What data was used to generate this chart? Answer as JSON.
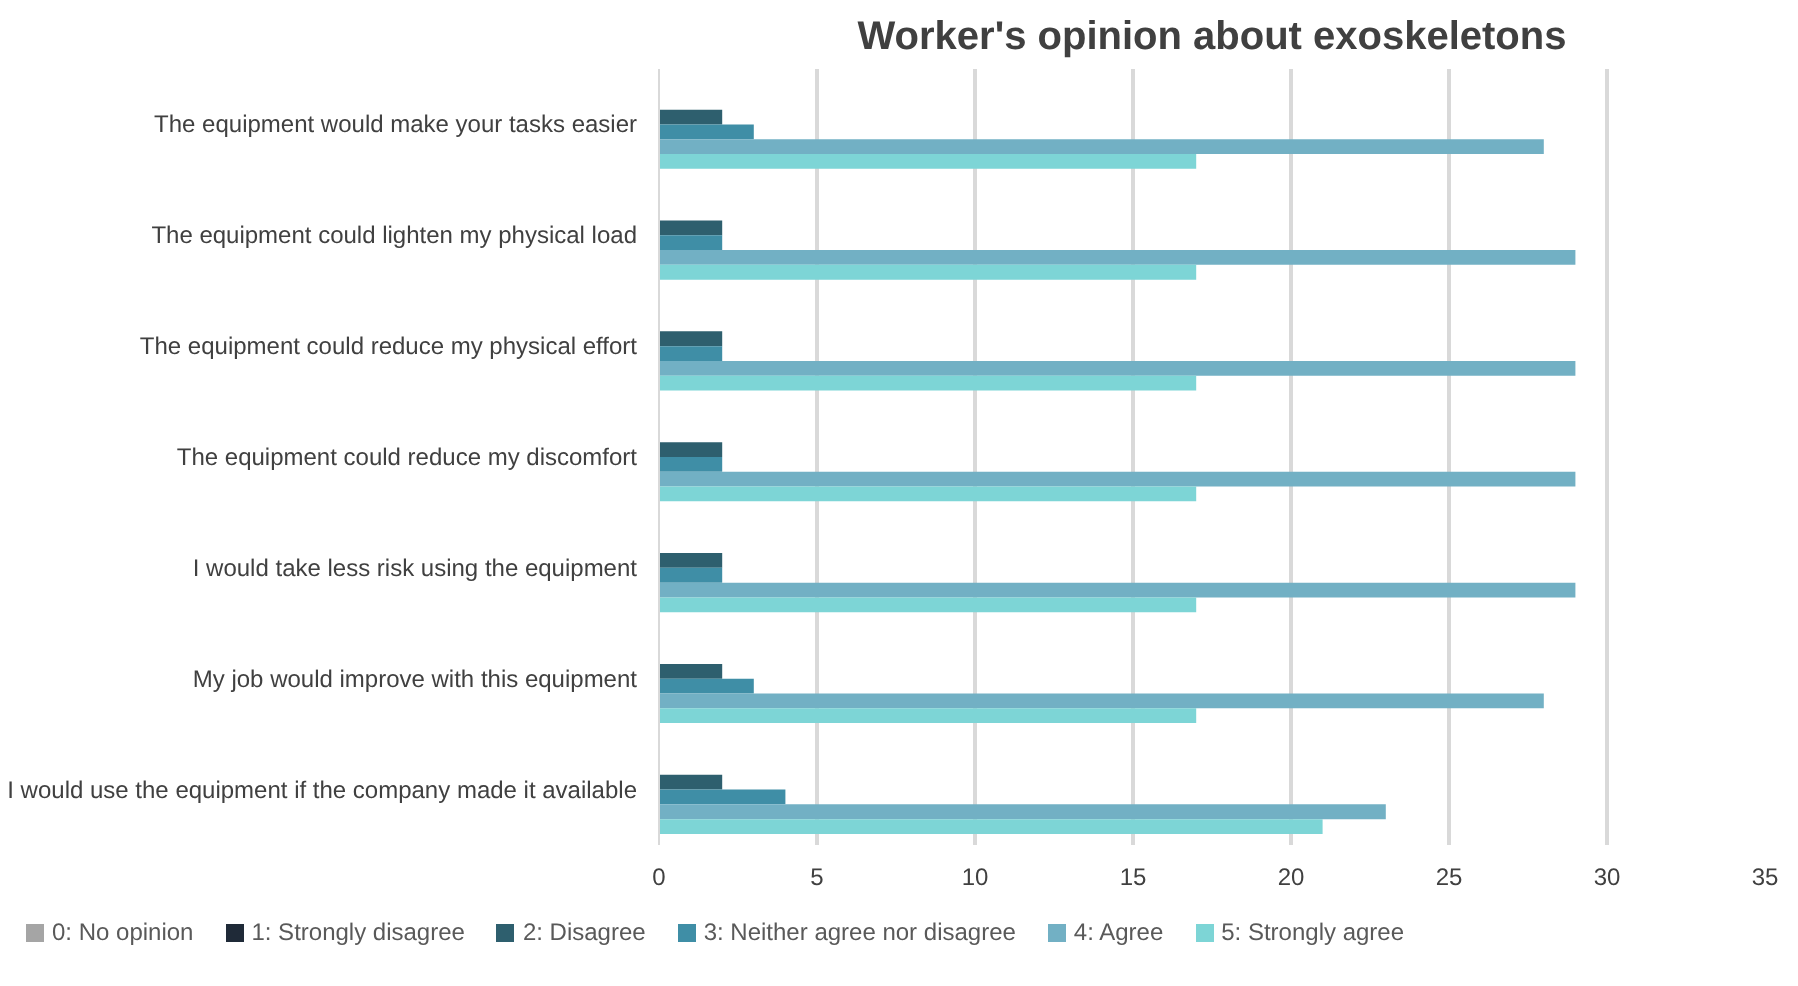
{
  "chart_data": {
    "type": "bar",
    "orientation": "horizontal",
    "title": "Worker's opinion about exoskeletons",
    "categories": [
      "The equipment would make your tasks easier",
      "The equipment could lighten my physical load",
      "The equipment could reduce my physical effort",
      "The equipment could reduce my discomfort",
      "I would take less risk using the equipment",
      "My job would improve with this equipment",
      "I would use the equipment if the company made it available"
    ],
    "series": [
      {
        "name": "0: No opinion",
        "color": "#a5a5a5",
        "values": [
          0,
          0,
          0,
          0,
          0,
          0,
          0
        ]
      },
      {
        "name": "1: Strongly disagree",
        "color": "#1f2a38",
        "values": [
          0,
          0,
          0,
          0,
          0,
          0,
          0
        ]
      },
      {
        "name": "2: Disagree",
        "color": "#2e5f6e",
        "values": [
          2,
          2,
          2,
          2,
          2,
          2,
          2
        ]
      },
      {
        "name": "3: Neither agree nor disagree",
        "color": "#3f8ea6",
        "values": [
          3,
          2,
          2,
          2,
          2,
          3,
          4
        ]
      },
      {
        "name": "4: Agree",
        "color": "#72b0c4",
        "values": [
          28,
          29,
          29,
          29,
          29,
          28,
          23
        ]
      },
      {
        "name": "5: Strongly agree",
        "color": "#7dd5d6",
        "values": [
          17,
          17,
          17,
          17,
          17,
          17,
          21
        ]
      }
    ],
    "xlim": [
      0,
      35
    ],
    "xticks": [
      0,
      5,
      10,
      15,
      20,
      25,
      30,
      35
    ],
    "grid": "x",
    "legend": "bottom"
  }
}
